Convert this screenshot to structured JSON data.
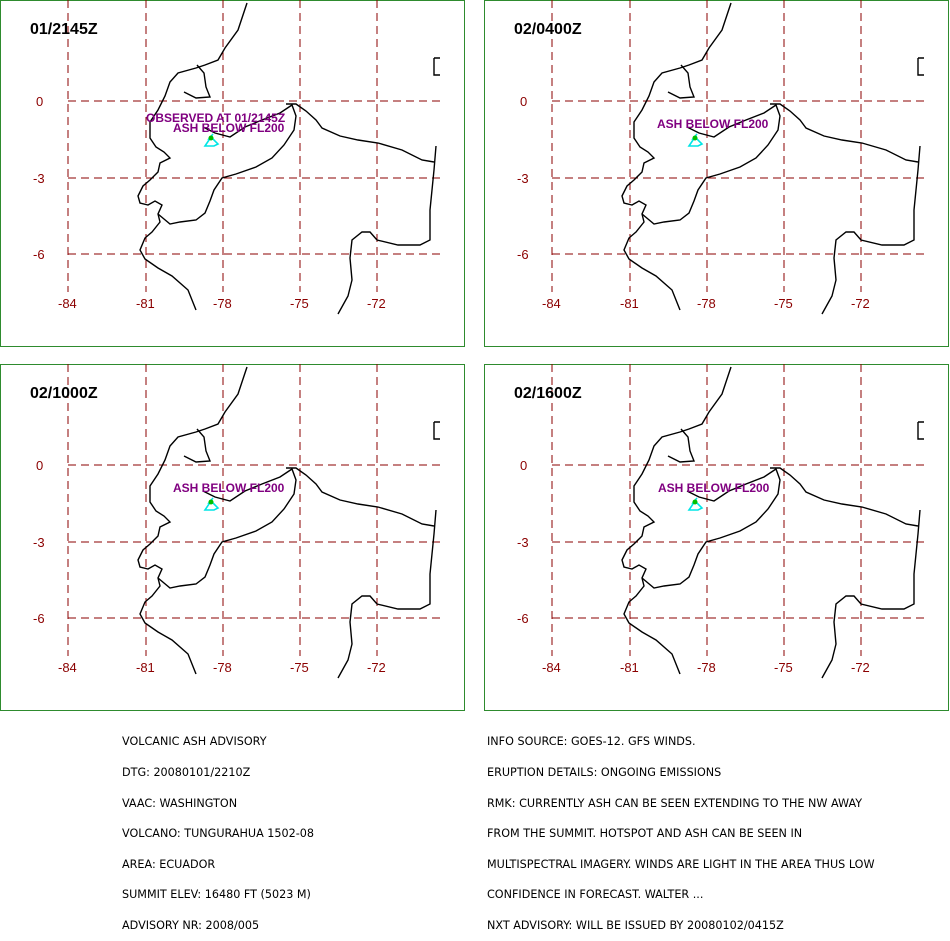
{
  "colors": {
    "frame": "#2e8b2e",
    "grid": "#8b0000",
    "coast": "#000000",
    "label_text": "#800080",
    "ash_polygon": "#00e5e5",
    "volcano_marker": "#00c000",
    "title_text": "#000000"
  },
  "grid": {
    "lat_labels": [
      "0",
      "-3",
      "-6"
    ],
    "lon_labels": [
      "-84",
      "-81",
      "-78",
      "-75",
      "-72"
    ]
  },
  "panels": [
    {
      "id": "p1",
      "title": "01/2145Z",
      "labels": [
        "OBSERVED AT 01/2145Z",
        "ASH BELOW FL200"
      ]
    },
    {
      "id": "p2",
      "title": "02/0400Z",
      "labels": [
        "ASH BELOW FL200"
      ]
    },
    {
      "id": "p3",
      "title": "02/1000Z",
      "labels": [
        "ASH BELOW FL200"
      ]
    },
    {
      "id": "p4",
      "title": "02/1600Z",
      "labels": [
        "ASH BELOW FL200"
      ]
    }
  ],
  "advisory": [
    "VOLCANIC ASH ADVISORY",
    "DTG: 20080101/2210Z",
    "VAAC: WASHINGTON",
    "VOLCANO: TUNGURAHUA 1502-08",
    "AREA: ECUADOR",
    "SUMMIT ELEV: 16480 FT (5023 M)",
    "ADVISORY NR: 2008/005"
  ],
  "info": [
    "INFO SOURCE: GOES-12. GFS WINDS.",
    "ERUPTION DETAILS: ONGOING EMISSIONS",
    "RMK: CURRENTLY ASH CAN BE SEEN EXTENDING TO THE NW AWAY",
    "FROM THE SUMMIT. HOTSPOT AND ASH CAN BE SEEN IN",
    "MULTISPECTRAL IMAGERY. WINDS ARE LIGHT IN THE AREA THUS LOW",
    "CONFIDENCE IN FORECAST. WALTER ...",
    "NXT ADVISORY: WILL BE ISSUED BY 20080102/0415Z"
  ]
}
